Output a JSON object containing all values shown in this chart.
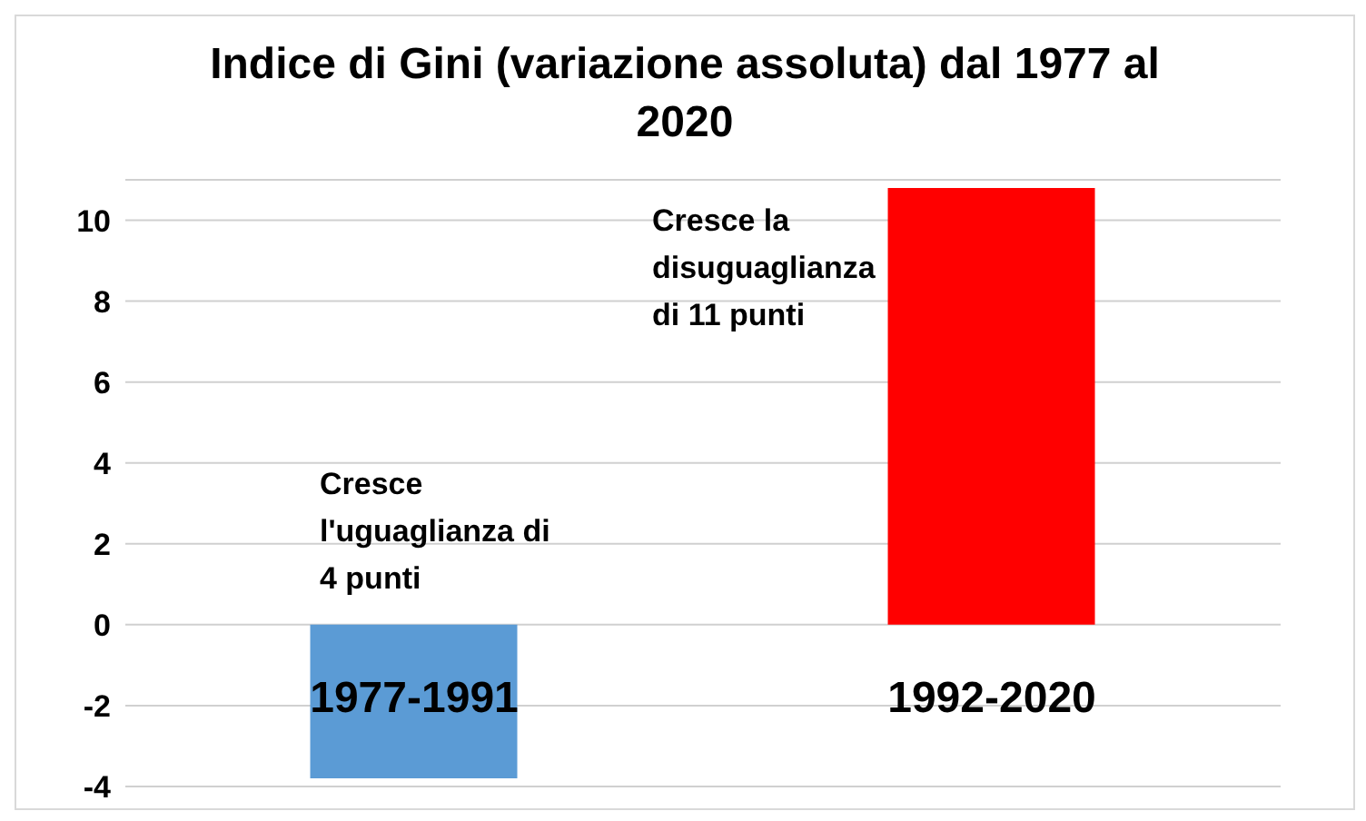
{
  "chart_data": {
    "type": "bar",
    "title": "Indice di Gini (variazione assoluta) dal 1977 al 2020",
    "categories": [
      "1977-1991",
      "1992-2020"
    ],
    "values": [
      -3.8,
      10.8
    ],
    "colors": [
      "#5b9bd5",
      "#ff0000"
    ],
    "ylim": [
      -4,
      11
    ],
    "yticks": [
      -4,
      -2,
      0,
      2,
      4,
      6,
      8,
      10
    ],
    "grid": "y",
    "annotations": [
      "Cresce l'uguaglianza di 4 punti",
      "Cresce la disuguaglianza di 11 punti"
    ]
  }
}
